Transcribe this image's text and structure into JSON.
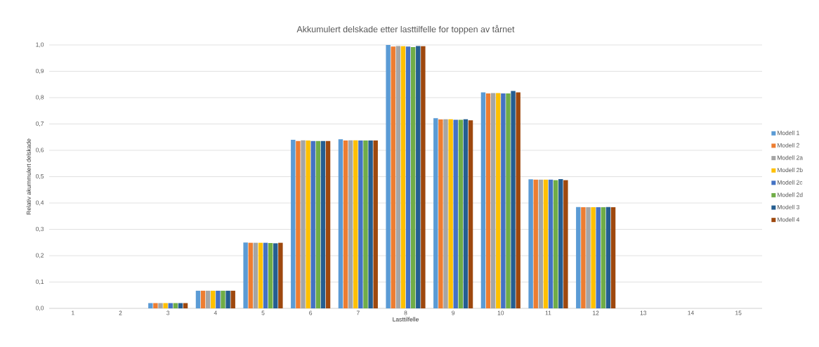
{
  "chart_data": {
    "type": "bar",
    "title": "Akkumulert delskade etter lasttilfelle for toppen av tårnet",
    "xlabel": "Lasttilfelle",
    "ylabel": "Relativ akummulert delskade",
    "categories": [
      "1",
      "2",
      "3",
      "4",
      "5",
      "6",
      "7",
      "8",
      "9",
      "10",
      "11",
      "12",
      "13",
      "14",
      "15"
    ],
    "series": [
      {
        "name": "Modell 1",
        "color": "#5b9bd5",
        "values": [
          0,
          0,
          0.02,
          0.067,
          0.25,
          0.64,
          0.642,
          1.0,
          0.722,
          0.82,
          0.49,
          0.385,
          0,
          0,
          0
        ]
      },
      {
        "name": "Modell 2",
        "color": "#ed7d31",
        "values": [
          0,
          0,
          0.02,
          0.067,
          0.249,
          0.635,
          0.637,
          0.994,
          0.717,
          0.816,
          0.489,
          0.384,
          0,
          0,
          0
        ]
      },
      {
        "name": "Modell 2a",
        "color": "#a5a5a5",
        "values": [
          0,
          0,
          0.02,
          0.067,
          0.249,
          0.638,
          0.638,
          0.996,
          0.718,
          0.817,
          0.489,
          0.384,
          0,
          0,
          0
        ]
      },
      {
        "name": "Modell 2b",
        "color": "#ffc000",
        "values": [
          0,
          0,
          0.02,
          0.067,
          0.249,
          0.637,
          0.638,
          0.995,
          0.718,
          0.817,
          0.489,
          0.384,
          0,
          0,
          0
        ]
      },
      {
        "name": "Modell 2c",
        "color": "#4472c4",
        "values": [
          0,
          0,
          0.02,
          0.067,
          0.249,
          0.635,
          0.637,
          0.994,
          0.716,
          0.816,
          0.489,
          0.384,
          0,
          0,
          0
        ]
      },
      {
        "name": "Modell 2d",
        "color": "#70ad47",
        "values": [
          0,
          0,
          0.02,
          0.067,
          0.248,
          0.635,
          0.637,
          0.992,
          0.716,
          0.816,
          0.487,
          0.384,
          0,
          0,
          0
        ]
      },
      {
        "name": "Modell 3",
        "color": "#255e91",
        "values": [
          0,
          0,
          0.02,
          0.067,
          0.247,
          0.635,
          0.637,
          0.996,
          0.718,
          0.825,
          0.491,
          0.385,
          0,
          0,
          0
        ]
      },
      {
        "name": "Modell 4",
        "color": "#9e480e",
        "values": [
          0,
          0,
          0.02,
          0.067,
          0.249,
          0.635,
          0.637,
          0.995,
          0.714,
          0.82,
          0.487,
          0.384,
          0,
          0,
          0
        ]
      }
    ],
    "ylim": [
      0,
      1.0
    ],
    "yticks": [
      {
        "value": 0,
        "label": "0,0"
      },
      {
        "value": 0.1,
        "label": "0,1"
      },
      {
        "value": 0.2,
        "label": "0,2"
      },
      {
        "value": 0.3,
        "label": "0,3"
      },
      {
        "value": 0.4,
        "label": "0,4"
      },
      {
        "value": 0.5,
        "label": "0,5"
      },
      {
        "value": 0.6,
        "label": "0,6"
      },
      {
        "value": 0.7,
        "label": "0,7"
      },
      {
        "value": 0.8,
        "label": "0,8"
      },
      {
        "value": 0.9,
        "label": "0,9"
      },
      {
        "value": 1.0,
        "label": "1,0"
      }
    ],
    "grid": "y",
    "legend": "right"
  }
}
